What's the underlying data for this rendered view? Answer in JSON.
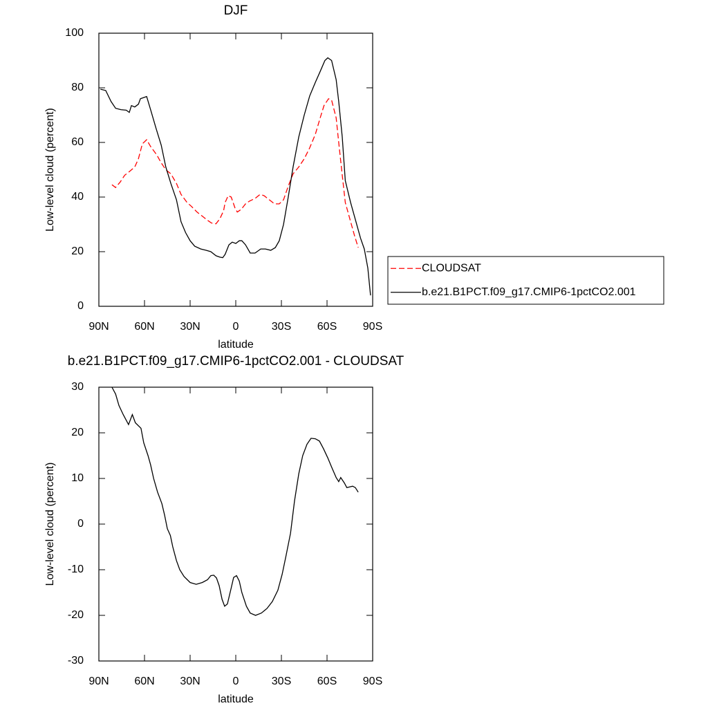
{
  "chart_data": [
    {
      "type": "line",
      "title": "DJF",
      "xlabel": "latitude",
      "ylabel": "Low-level cloud (percent)",
      "xlim": [
        90,
        -90
      ],
      "xticks": [
        {
          "value": 90,
          "label": "90N"
        },
        {
          "value": 60,
          "label": "60N"
        },
        {
          "value": 30,
          "label": "30N"
        },
        0,
        {
          "value": -30,
          "label": "30S"
        },
        {
          "value": -60,
          "label": "60S"
        },
        {
          "value": -90,
          "label": "90S"
        }
      ],
      "ylim": [
        0,
        100
      ],
      "yticks": [
        0,
        20,
        40,
        60,
        80,
        100
      ],
      "legend": "right",
      "series": [
        {
          "name": "CLOUDSAT",
          "color": "#ff0000",
          "line_style": "dashed",
          "x": [
            81.4,
            79,
            76,
            73,
            70,
            66.4,
            64,
            61.4,
            58.6,
            56,
            52,
            49,
            46,
            42.7,
            39,
            36,
            32,
            29,
            25.5,
            22,
            18.6,
            16,
            13,
            10.5,
            8,
            7,
            5,
            3,
            0.5,
            -1,
            -3.6,
            -6.4,
            -9,
            -12.7,
            -16,
            -18.6,
            -22,
            -25.5,
            -28.6,
            -31.4,
            -34.5,
            -37.7,
            -41.4,
            -45,
            -48.6,
            -52.3,
            -55.5,
            -58,
            -61,
            -63,
            -66,
            -67.7,
            -70,
            -72,
            -75.5,
            -78,
            -80.5
          ],
          "values": [
            44.5,
            43.5,
            45.5,
            48,
            49.3,
            51,
            54,
            59.5,
            61,
            58.5,
            55.5,
            52.5,
            50,
            48.5,
            45,
            41,
            38,
            36.5,
            34.5,
            33,
            31.5,
            30.5,
            30.2,
            32,
            35,
            38,
            40.5,
            40,
            36,
            34.5,
            35.5,
            37.5,
            38.5,
            39.5,
            41,
            40.5,
            39,
            37.5,
            37.5,
            39,
            44,
            48.5,
            51,
            54,
            58,
            63,
            69,
            73.5,
            76,
            75.5,
            69,
            60,
            48,
            38,
            31,
            26,
            21.5
          ]
        },
        {
          "name": "b.e21.B1PCT.f09_g17.CMIP6-1pctCO2.001",
          "color": "#000000",
          "line_style": "solid",
          "x": [
            89,
            85.5,
            82,
            79,
            75.5,
            72,
            70,
            68.6,
            66.4,
            64,
            62.7,
            58.6,
            56,
            52.3,
            49,
            46,
            42.7,
            39,
            36,
            33,
            30,
            27,
            23,
            19.5,
            16.4,
            13,
            10.5,
            8.6,
            7,
            4.5,
            2.3,
            0,
            -2.3,
            -4,
            -6.4,
            -9.5,
            -12.7,
            -16.4,
            -19.5,
            -23,
            -26,
            -28.6,
            -31.4,
            -34.5,
            -37.7,
            -41.4,
            -45,
            -48.6,
            -52.3,
            -55.5,
            -58.6,
            -60.5,
            -63,
            -66,
            -67.7,
            -70,
            -72,
            -75.5,
            -79,
            -82,
            -84.5,
            -86.8,
            -88.6
          ],
          "values": [
            79.5,
            79,
            75,
            72.5,
            72,
            71.8,
            71,
            73.5,
            73,
            74,
            76,
            76.8,
            72,
            65,
            59,
            51,
            45,
            39,
            31,
            27,
            24,
            22,
            21,
            20.5,
            20,
            18.5,
            18,
            17.8,
            19,
            22.5,
            23.5,
            23,
            24,
            24,
            22.5,
            19.5,
            19.5,
            21,
            21,
            20.5,
            21.5,
            24,
            30,
            40,
            51,
            62,
            70,
            77,
            82,
            86,
            90,
            91,
            90,
            83,
            75,
            62,
            46,
            38,
            31,
            25,
            21,
            14,
            4
          ]
        }
      ]
    },
    {
      "type": "line",
      "title": "b.e21.B1PCT.f09_g17.CMIP6-1pctCO2.001 - CLOUDSAT",
      "xlabel": "latitude",
      "ylabel": "Low-level cloud (percent)",
      "xlim": [
        90,
        -90
      ],
      "xticks": [
        {
          "value": 90,
          "label": "90N"
        },
        {
          "value": 60,
          "label": "60N"
        },
        {
          "value": 30,
          "label": "30N"
        },
        0,
        {
          "value": -30,
          "label": "30S"
        },
        {
          "value": -60,
          "label": "60S"
        },
        {
          "value": -90,
          "label": "90S"
        }
      ],
      "ylim": [
        -30,
        30
      ],
      "yticks": [
        -30,
        -20,
        -10,
        0,
        10,
        20,
        30
      ],
      "series": [
        {
          "color": "#000000",
          "line_style": "solid",
          "x": [
            81.4,
            79,
            76.8,
            74,
            70.5,
            68,
            66,
            62.3,
            60.5,
            57.7,
            56,
            54,
            51.4,
            48.6,
            46.8,
            45,
            43,
            41.4,
            39,
            36.8,
            34,
            30,
            26,
            22,
            18.6,
            16.4,
            14.5,
            12.7,
            10.9,
            9,
            7.3,
            5.5,
            3,
            1.4,
            -0.5,
            -2.3,
            -4,
            -7,
            -9.5,
            -13,
            -16.8,
            -20.5,
            -24,
            -27.7,
            -30.5,
            -33,
            -36,
            -38.6,
            -41.4,
            -44,
            -46.8,
            -49.5,
            -52.3,
            -55,
            -57.7,
            -60.5,
            -63,
            -66,
            -67.7,
            -69,
            -71.4,
            -73,
            -76.8,
            -78.6,
            -80.5
          ],
          "values": [
            30,
            28.5,
            26,
            24,
            21.8,
            24,
            22.2,
            21,
            17.8,
            15,
            13,
            10,
            7,
            4.5,
            2,
            -1,
            -2.5,
            -5,
            -8,
            -10,
            -11.5,
            -12.8,
            -13.2,
            -12.8,
            -12.2,
            -11.3,
            -11.2,
            -11.8,
            -13.5,
            -16.5,
            -18,
            -17.5,
            -14,
            -11.7,
            -11.3,
            -12.5,
            -15,
            -18,
            -19.5,
            -20,
            -19.5,
            -18.5,
            -17,
            -14.5,
            -11,
            -7,
            -2,
            5,
            11,
            15,
            17.5,
            18.8,
            18.7,
            18.2,
            16.5,
            14.5,
            12.5,
            10.2,
            9.3,
            10.2,
            9,
            8,
            8.3,
            8,
            7
          ]
        }
      ]
    }
  ]
}
